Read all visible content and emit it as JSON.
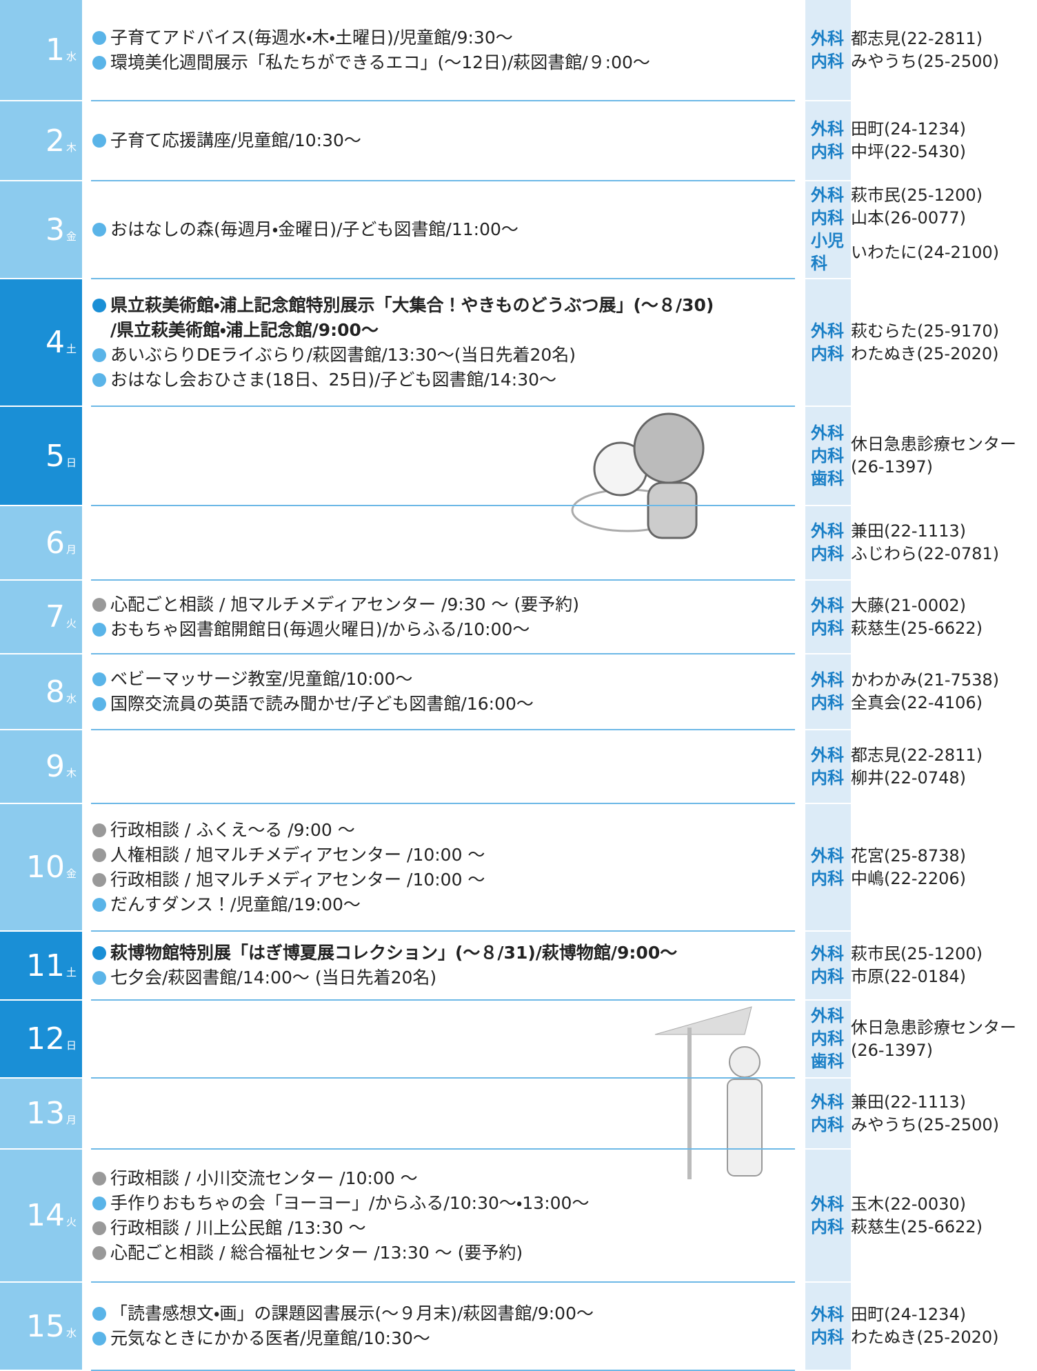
{
  "days": [
    {
      "day": "1",
      "weekday": "水",
      "events": [
        {
          "text": "子育てアドバイス(毎週水・木・土曜日)/児童館/9:30～",
          "color": "#5ab4e8"
        },
        {
          "text": "環境美化週間展示「私たちができるエコ」(～12日)/萩図書館/９:00～",
          "color": "#5ab4e8"
        }
      ],
      "doctors": [
        {
          "depts": [
            "外科"
          ],
          "name": "都志見(22-2811)"
        },
        {
          "depts": [
            "内科"
          ],
          "name": "みやうち(25-2500)"
        }
      ]
    },
    {
      "day": "2",
      "weekday": "木",
      "events": [
        {
          "text": "子育て応援講座/児童館/10:30～",
          "color": "#5ab4e8"
        }
      ],
      "doctors": [
        {
          "depts": [
            "外科"
          ],
          "name": "田町(24-1234)"
        },
        {
          "depts": [
            "内科"
          ],
          "name": "中坪(22-5430)"
        }
      ]
    },
    {
      "day": "3",
      "weekday": "金",
      "events": [
        {
          "text": "おはなしの森(毎週月・金曜日)/子ども図書館/11:00～",
          "color": "#5ab4e8"
        }
      ],
      "doctors": [
        {
          "depts": [
            "外科"
          ],
          "name": "萩市民(25-1200)"
        },
        {
          "depts": [
            "内科"
          ],
          "name": "山本(26-0077)"
        },
        {
          "depts": [
            "小児科"
          ],
          "name": "いわたに(24-2100)"
        }
      ]
    },
    {
      "day": "4",
      "weekday": "土",
      "weekend": true,
      "events": [
        {
          "text": "県立萩美術館・浦上記念館特別展示「大集合！やきものどうぶつ展」(～８/30)\n/県立萩美術館・浦上記念館/9:00～",
          "color": "#1a8fd6",
          "bold": true
        },
        {
          "text": "あいぶらりDEライぶらり/萩図書館/13:30～(当日先着20名)",
          "color": "#5ab4e8"
        },
        {
          "text": "おはなし会おひさま(18日、25日)/子ども図書館/14:30～",
          "color": "#5ab4e8"
        }
      ],
      "doctors": [
        {
          "depts": [
            "外科"
          ],
          "name": "萩むらた(25-9170)"
        },
        {
          "depts": [
            "内科"
          ],
          "name": "わたぬき(25-2020)"
        }
      ]
    },
    {
      "day": "5",
      "weekday": "日",
      "weekend": true,
      "events": [],
      "doctors": [
        {
          "depts": [
            "外科",
            "内科",
            "歯科"
          ],
          "name": "休日急患診療センター\n(26-1397)"
        }
      ]
    },
    {
      "day": "6",
      "weekday": "月",
      "events": [],
      "doctors": [
        {
          "depts": [
            "外科"
          ],
          "name": "兼田(22-1113)"
        },
        {
          "depts": [
            "内科"
          ],
          "name": "ふじわら(22-0781)"
        }
      ]
    },
    {
      "day": "7",
      "weekday": "火",
      "events": [
        {
          "text": "心配ごと相談 / 旭マルチメディアセンター /9:30 ～ (要予約)",
          "color": "#999999"
        },
        {
          "text": "おもちゃ図書館開館日(毎週火曜日)/からふる/10:00～",
          "color": "#5ab4e8"
        }
      ],
      "doctors": [
        {
          "depts": [
            "外科"
          ],
          "name": "大藤(21-0002)"
        },
        {
          "depts": [
            "内科"
          ],
          "name": "萩慈生(25-6622)"
        }
      ]
    },
    {
      "day": "8",
      "weekday": "水",
      "events": [
        {
          "text": "ベビーマッサージ教室/児童館/10:00～",
          "color": "#5ab4e8"
        },
        {
          "text": "国際交流員の英語で読み聞かせ/子ども図書館/16:00～",
          "color": "#5ab4e8"
        }
      ],
      "doctors": [
        {
          "depts": [
            "外科"
          ],
          "name": "かわかみ(21-7538)"
        },
        {
          "depts": [
            "内科"
          ],
          "name": "全真会(22-4106)"
        }
      ]
    },
    {
      "day": "9",
      "weekday": "木",
      "events": [],
      "doctors": [
        {
          "depts": [
            "外科"
          ],
          "name": "都志見(22-2811)"
        },
        {
          "depts": [
            "内科"
          ],
          "name": "柳井(22-0748)"
        }
      ]
    },
    {
      "day": "10",
      "weekday": "金",
      "events": [
        {
          "text": "行政相談 / ふくえ～る /9:00 ～",
          "color": "#999999"
        },
        {
          "text": "人権相談 / 旭マルチメディアセンター /10:00 ～",
          "color": "#999999"
        },
        {
          "text": "行政相談 / 旭マルチメディアセンター /10:00 ～",
          "color": "#999999"
        },
        {
          "text": "だんすダンス！/児童館/19:00～",
          "color": "#5ab4e8"
        }
      ],
      "doctors": [
        {
          "depts": [
            "外科"
          ],
          "name": "花宮(25-8738)"
        },
        {
          "depts": [
            "内科"
          ],
          "name": "中嶋(22-2206)"
        }
      ]
    },
    {
      "day": "11",
      "weekday": "土",
      "weekend": true,
      "events": [
        {
          "text": "萩博物館特別展「はぎ博夏展コレクション」(～８/31)/萩博物館/9:00～",
          "color": "#1a8fd6",
          "bold": true
        },
        {
          "text": "七夕会/萩図書館/14:00～ (当日先着20名)",
          "color": "#5ab4e8"
        }
      ],
      "doctors": [
        {
          "depts": [
            "外科"
          ],
          "name": "萩市民(25-1200)"
        },
        {
          "depts": [
            "内科"
          ],
          "name": "市原(22-0184)"
        }
      ]
    },
    {
      "day": "12",
      "weekday": "日",
      "weekend": true,
      "events": [],
      "doctors": [
        {
          "depts": [
            "外科",
            "内科",
            "歯科"
          ],
          "name": "休日急患診療センター\n(26-1397)"
        }
      ]
    },
    {
      "day": "13",
      "weekday": "月",
      "events": [],
      "doctors": [
        {
          "depts": [
            "外科"
          ],
          "name": "兼田(22-1113)"
        },
        {
          "depts": [
            "内科"
          ],
          "name": "みやうち(25-2500)"
        }
      ]
    },
    {
      "day": "14",
      "weekday": "火",
      "events": [
        {
          "text": "行政相談 / 小川交流センター /10:00 ～",
          "color": "#999999"
        },
        {
          "text": "手作りおもちゃの会「ヨーヨー」/からふる/10:30～・13:00～",
          "color": "#5ab4e8"
        },
        {
          "text": "行政相談 / 川上公民館 /13:30 ～",
          "color": "#999999"
        },
        {
          "text": "心配ごと相談 / 総合福祉センター /13:30 ～ (要予約)",
          "color": "#999999"
        }
      ],
      "doctors": [
        {
          "depts": [
            "外科"
          ],
          "name": "玉木(22-0030)"
        },
        {
          "depts": [
            "内科"
          ],
          "name": "萩慈生(25-6622)"
        }
      ]
    },
    {
      "day": "15",
      "weekday": "水",
      "events": [
        {
          "text": "「読書感想文・画」の課題図書展示(～９月末)/萩図書館/9:00～",
          "color": "#5ab4e8"
        },
        {
          "text": "元気なときにかかる医者/児童館/10:30～",
          "color": "#5ab4e8"
        }
      ],
      "doctors": [
        {
          "depts": [
            "外科"
          ],
          "name": "田町(24-1234)"
        },
        {
          "depts": [
            "内科"
          ],
          "name": "わたぬき(25-2020)"
        }
      ]
    }
  ]
}
